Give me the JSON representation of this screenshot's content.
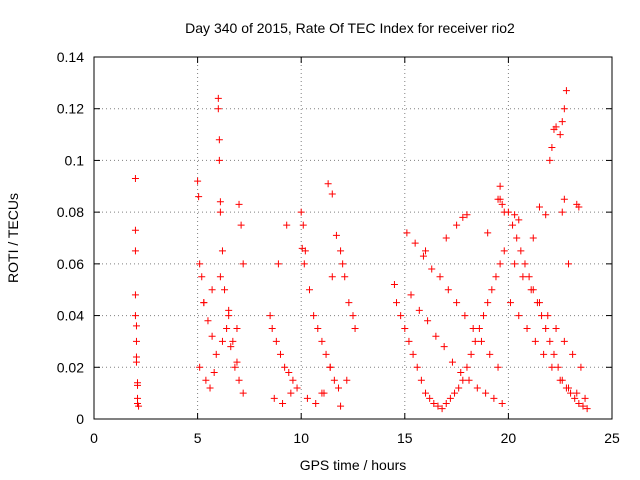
{
  "chart_data": {
    "type": "scatter",
    "title": "Day 340 of 2015, Rate Of TEC Index for receiver rio2",
    "xlabel": "GPS time / hours",
    "ylabel": "ROTI / TECUs",
    "xlim": [
      0,
      25
    ],
    "ylim": [
      0,
      0.14
    ],
    "x_ticks": [
      "0",
      "5",
      "10",
      "15",
      "20",
      "25"
    ],
    "y_ticks": [
      "0",
      "0.02",
      "0.04",
      "0.06",
      "0.08",
      "0.1",
      "0.12",
      "0.14"
    ],
    "grid": true,
    "marker": "+",
    "color": "#ff0000",
    "series": [
      {
        "x": [
          2.0,
          2.0,
          2.0,
          2.0,
          2.0,
          2.05,
          2.05,
          2.05,
          2.05,
          2.1,
          2.1,
          2.1,
          2.1,
          2.15,
          5.0,
          5.05,
          5.1,
          5.2,
          5.3,
          5.5,
          5.7,
          5.9,
          6.0,
          6.0,
          6.05,
          6.05,
          6.1,
          6.1,
          6.2,
          6.3,
          6.5,
          6.7,
          6.9,
          7.0,
          7.1,
          7.2,
          5.1,
          5.4,
          5.6,
          5.8,
          6.2,
          6.4,
          6.6,
          6.8,
          7.0,
          7.2,
          5.3,
          5.7,
          6.1,
          6.5,
          6.9,
          8.5,
          8.6,
          8.8,
          9.0,
          9.2,
          9.4,
          9.6,
          9.8,
          8.7,
          9.1,
          9.5,
          9.3,
          8.9,
          10.0,
          10.1,
          10.2,
          10.4,
          10.6,
          10.8,
          11.0,
          11.2,
          11.4,
          11.6,
          11.8,
          10.3,
          10.7,
          11.1,
          11.5,
          10.05,
          10.15,
          11.3,
          11.5,
          11.7,
          11.9,
          12.0,
          12.1,
          12.3,
          12.5,
          12.6,
          11.4,
          12.2,
          11.0,
          11.9,
          14.5,
          14.6,
          14.8,
          15.0,
          15.2,
          15.4,
          15.6,
          15.8,
          16.0,
          16.2,
          16.4,
          16.6,
          16.8,
          17.0,
          17.2,
          17.4,
          17.6,
          17.8,
          18.0,
          18.2,
          18.4,
          18.6,
          18.8,
          19.0,
          19.2,
          19.4,
          19.6,
          19.8,
          15.1,
          15.5,
          15.9,
          16.3,
          16.7,
          17.1,
          17.5,
          17.9,
          18.3,
          18.7,
          19.1,
          19.5,
          15.3,
          15.7,
          16.1,
          16.5,
          16.9,
          17.3,
          17.7,
          18.1,
          18.5,
          18.9,
          19.3,
          19.7,
          16.0,
          17.0,
          17.5,
          18.0,
          19.0,
          19.5,
          19.6,
          19.7,
          19.8,
          17.8,
          20.0,
          20.2,
          20.4,
          20.6,
          20.8,
          21.0,
          21.2,
          21.4,
          21.6,
          21.8,
          22.0,
          22.2,
          22.4,
          22.6,
          22.8,
          23.0,
          23.2,
          23.4,
          23.6,
          23.8,
          20.1,
          20.5,
          20.9,
          21.3,
          21.7,
          22.1,
          22.5,
          22.9,
          23.3,
          23.7,
          20.3,
          20.7,
          21.1,
          21.5,
          21.9,
          22.3,
          22.7,
          23.1,
          23.5,
          22.0,
          22.1,
          22.2,
          22.3,
          22.5,
          22.6,
          22.7,
          22.8,
          22.6,
          22.7,
          21.5,
          21.8,
          23.3,
          23.4,
          20.3,
          20.5,
          21.2,
          22.9,
          19.6
        ],
        "y": [
          0.093,
          0.073,
          0.065,
          0.048,
          0.04,
          0.036,
          0.03,
          0.024,
          0.022,
          0.014,
          0.013,
          0.008,
          0.006,
          0.005,
          0.092,
          0.086,
          0.06,
          0.055,
          0.045,
          0.038,
          0.032,
          0.025,
          0.124,
          0.12,
          0.108,
          0.1,
          0.08,
          0.084,
          0.065,
          0.05,
          0.042,
          0.03,
          0.022,
          0.083,
          0.075,
          0.06,
          0.02,
          0.015,
          0.012,
          0.018,
          0.03,
          0.035,
          0.028,
          0.02,
          0.015,
          0.01,
          0.045,
          0.05,
          0.055,
          0.04,
          0.035,
          0.04,
          0.035,
          0.03,
          0.025,
          0.02,
          0.018,
          0.015,
          0.012,
          0.008,
          0.006,
          0.01,
          0.075,
          0.06,
          0.08,
          0.075,
          0.065,
          0.05,
          0.04,
          0.035,
          0.03,
          0.025,
          0.02,
          0.015,
          0.012,
          0.008,
          0.006,
          0.01,
          0.055,
          0.066,
          0.06,
          0.091,
          0.087,
          0.071,
          0.065,
          0.06,
          0.055,
          0.045,
          0.04,
          0.035,
          0.02,
          0.015,
          0.01,
          0.005,
          0.052,
          0.045,
          0.04,
          0.035,
          0.03,
          0.025,
          0.02,
          0.015,
          0.01,
          0.008,
          0.006,
          0.005,
          0.004,
          0.006,
          0.008,
          0.01,
          0.012,
          0.015,
          0.02,
          0.025,
          0.03,
          0.035,
          0.04,
          0.045,
          0.05,
          0.055,
          0.06,
          0.065,
          0.072,
          0.068,
          0.063,
          0.058,
          0.055,
          0.05,
          0.045,
          0.04,
          0.035,
          0.03,
          0.025,
          0.02,
          0.048,
          0.042,
          0.038,
          0.032,
          0.028,
          0.022,
          0.018,
          0.015,
          0.012,
          0.01,
          0.008,
          0.006,
          0.065,
          0.07,
          0.075,
          0.079,
          0.072,
          0.085,
          0.09,
          0.083,
          0.08,
          0.078,
          0.08,
          0.075,
          0.07,
          0.065,
          0.06,
          0.055,
          0.05,
          0.045,
          0.04,
          0.035,
          0.03,
          0.025,
          0.02,
          0.015,
          0.012,
          0.01,
          0.008,
          0.006,
          0.005,
          0.004,
          0.045,
          0.04,
          0.035,
          0.03,
          0.025,
          0.02,
          0.015,
          0.012,
          0.01,
          0.008,
          0.06,
          0.055,
          0.05,
          0.045,
          0.04,
          0.035,
          0.03,
          0.025,
          0.02,
          0.1,
          0.105,
          0.112,
          0.113,
          0.11,
          0.115,
          0.12,
          0.127,
          0.08,
          0.085,
          0.082,
          0.079,
          0.083,
          0.082,
          0.079,
          0.077,
          0.07,
          0.06,
          0.085
        ]
      }
    ]
  }
}
